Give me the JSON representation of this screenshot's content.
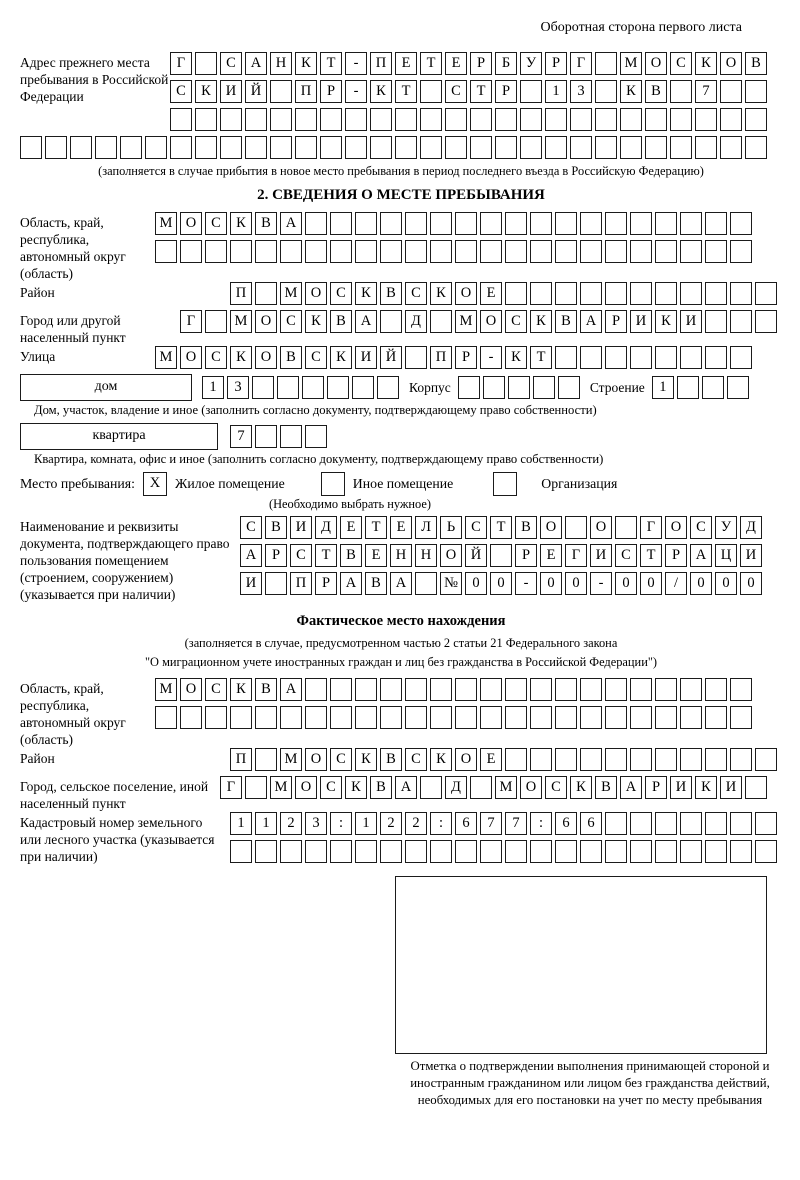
{
  "page": {
    "header_note": "Оборотная сторона первого листа"
  },
  "prev_address": {
    "label": "Адрес прежнего места пребывания в Российской Федерации",
    "row1": [
      "Г",
      "",
      "С",
      "А",
      "Н",
      "К",
      "Т",
      "-",
      "П",
      "Е",
      "Т",
      "Е",
      "Р",
      "Б",
      "У",
      "Р",
      "Г",
      "",
      "М",
      "О",
      "С",
      "К",
      "О",
      "В"
    ],
    "row2": [
      "С",
      "К",
      "И",
      "Й",
      "",
      "П",
      "Р",
      "-",
      "К",
      "Т",
      "",
      "С",
      "Т",
      "Р",
      "",
      "1",
      "3",
      "",
      "К",
      "В",
      "",
      "7",
      "",
      ""
    ],
    "row3": [
      "",
      "",
      "",
      "",
      "",
      "",
      "",
      "",
      "",
      "",
      "",
      "",
      "",
      "",
      "",
      "",
      "",
      "",
      "",
      "",
      "",
      "",
      "",
      ""
    ],
    "row4": [
      "",
      "",
      "",
      "",
      "",
      "",
      "",
      "",
      "",
      "",
      "",
      "",
      "",
      "",
      "",
      "",
      "",
      "",
      "",
      "",
      "",
      "",
      "",
      "",
      "",
      "",
      "",
      "",
      "",
      ""
    ],
    "note": "(заполняется в случае прибытия в новое место пребывания в период последнего въезда в Российскую Федерацию)"
  },
  "section2": {
    "title": "2. СВЕДЕНИЯ О МЕСТЕ ПРЕБЫВАНИЯ",
    "region": {
      "label": "Область, край, республика, автономный округ (область)",
      "row1": [
        "М",
        "О",
        "С",
        "К",
        "В",
        "А",
        "",
        "",
        "",
        "",
        "",
        "",
        "",
        "",
        "",
        "",
        "",
        "",
        "",
        "",
        "",
        "",
        "",
        ""
      ],
      "row2": [
        "",
        "",
        "",
        "",
        "",
        "",
        "",
        "",
        "",
        "",
        "",
        "",
        "",
        "",
        "",
        "",
        "",
        "",
        "",
        "",
        "",
        "",
        "",
        ""
      ]
    },
    "district": {
      "label": "Район",
      "cells": [
        "П",
        "",
        "М",
        "О",
        "С",
        "К",
        "В",
        "С",
        "К",
        "О",
        "Е",
        "",
        "",
        "",
        "",
        "",
        "",
        "",
        "",
        "",
        "",
        ""
      ]
    },
    "city": {
      "label": "Город или другой населенный пункт",
      "cells": [
        "Г",
        "",
        "М",
        "О",
        "С",
        "К",
        "В",
        "А",
        "",
        "Д",
        "",
        "М",
        "О",
        "С",
        "К",
        "В",
        "А",
        "Р",
        "И",
        "К",
        "И",
        "",
        "",
        ""
      ]
    },
    "street": {
      "label": "Улица",
      "cells": [
        "М",
        "О",
        "С",
        "К",
        "О",
        "В",
        "С",
        "К",
        "И",
        "Й",
        "",
        "П",
        "Р",
        "-",
        "К",
        "Т",
        "",
        "",
        "",
        "",
        "",
        "",
        "",
        ""
      ]
    },
    "house": {
      "box_label": "дом",
      "cells": [
        "1",
        "3",
        "",
        "",
        "",
        "",
        "",
        ""
      ],
      "korpus_label": "Корпус",
      "korpus_cells": [
        "",
        "",
        "",
        "",
        ""
      ],
      "stroenie_label": "Строение",
      "stroenie_cells": [
        "1",
        "",
        "",
        ""
      ]
    },
    "house_note": "Дом, участок, владение и иное (заполнить согласно документу, подтверждающему право собственности)",
    "apartment": {
      "box_label": "квартира",
      "cells": [
        "7",
        "",
        "",
        ""
      ]
    },
    "apartment_note": "Квартира, комната, офис и иное (заполнить согласно документу, подтверждающему право собственности)",
    "stay_type": {
      "label": "Место пребывания:",
      "options": [
        {
          "label": "Жилое помещение",
          "mark": "X"
        },
        {
          "label": "Иное помещение",
          "mark": ""
        },
        {
          "label": "Организация",
          "mark": ""
        }
      ],
      "note": "(Необходимо выбрать нужное)"
    },
    "doc": {
      "label": "Наименование и реквизиты документа, подтверждающего право пользования помещением (строением, сооружением) (указывается при наличии)",
      "row1": [
        "С",
        "В",
        "И",
        "Д",
        "Е",
        "Т",
        "Е",
        "Л",
        "Ь",
        "С",
        "Т",
        "В",
        "О",
        "",
        "О",
        "",
        "Г",
        "О",
        "С",
        "У",
        "Д"
      ],
      "row2": [
        "А",
        "Р",
        "С",
        "Т",
        "В",
        "Е",
        "Н",
        "Н",
        "О",
        "Й",
        "",
        "Р",
        "Е",
        "Г",
        "И",
        "С",
        "Т",
        "Р",
        "А",
        "Ц",
        "И"
      ],
      "row3": [
        "И",
        "",
        "П",
        "Р",
        "А",
        "В",
        "А",
        "",
        "№",
        "0",
        "0",
        "-",
        "0",
        "0",
        "-",
        "0",
        "0",
        "/",
        "0",
        "0",
        "0"
      ]
    }
  },
  "actual_location": {
    "title": "Фактическое место нахождения",
    "note1": "(заполняется в случае, предусмотренном частью 2 статьи 21 Федерального закона",
    "note2": "\"О миграционном учете иностранных граждан и лиц без гражданства в Российской Федерации\")",
    "region": {
      "label": "Область, край, республика, автономный округ (область)",
      "row1": [
        "М",
        "О",
        "С",
        "К",
        "В",
        "А",
        "",
        "",
        "",
        "",
        "",
        "",
        "",
        "",
        "",
        "",
        "",
        "",
        "",
        "",
        "",
        "",
        "",
        ""
      ],
      "row2": [
        "",
        "",
        "",
        "",
        "",
        "",
        "",
        "",
        "",
        "",
        "",
        "",
        "",
        "",
        "",
        "",
        "",
        "",
        "",
        "",
        "",
        "",
        "",
        ""
      ]
    },
    "district": {
      "label": "Район",
      "cells": [
        "П",
        "",
        "М",
        "О",
        "С",
        "К",
        "В",
        "С",
        "К",
        "О",
        "Е",
        "",
        "",
        "",
        "",
        "",
        "",
        "",
        "",
        "",
        "",
        ""
      ]
    },
    "city": {
      "label": "Город, сельское поселение, иной населенный пункт",
      "cells": [
        "Г",
        "",
        "М",
        "О",
        "С",
        "К",
        "В",
        "А",
        "",
        "Д",
        "",
        "М",
        "О",
        "С",
        "К",
        "В",
        "А",
        "Р",
        "И",
        "К",
        "И",
        ""
      ]
    },
    "cadastral": {
      "label": "Кадастровый номер земельного или лесного участка (указывается при наличии)",
      "row1": [
        "1",
        "1",
        "2",
        "3",
        ":",
        "1",
        "2",
        "2",
        ":",
        "6",
        "7",
        "7",
        ":",
        "6",
        "6",
        "",
        "",
        "",
        "",
        "",
        "",
        ""
      ],
      "row2": [
        "",
        "",
        "",
        "",
        "",
        "",
        "",
        "",
        "",
        "",
        "",
        "",
        "",
        "",
        "",
        "",
        "",
        "",
        "",
        "",
        "",
        ""
      ]
    },
    "stamp_note": "Отметка о подтверждении выполнения принимающей стороной и иностранным гражданином или лицом без гражданства действий, необходимых для его постановки на учет по месту пребывания"
  }
}
